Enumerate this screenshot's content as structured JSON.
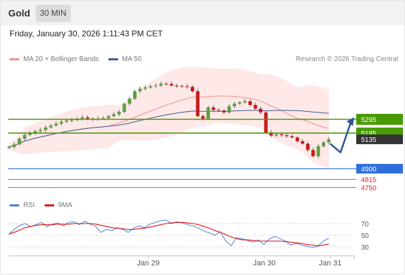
{
  "header": {
    "asset": "Gold",
    "timeframe": "30 MIN"
  },
  "datetime": "Friday, January 30, 2026 1:11:43 PM CET",
  "copyright": "Research © 2026 Trading Central",
  "colors": {
    "support_green": "#4a9a06",
    "pivot_blue": "#2f6fdb",
    "target_red": "#e31b1b",
    "candle_up": "#5aa040",
    "candle_down": "#c81919",
    "bollinger_fill": "#fde0e0",
    "ma20": "#f48c8c",
    "ma50": "#3a5a8c",
    "rsi": "#4a7cd9",
    "rsi_ma": "#dd1111",
    "price_tag": "#333333",
    "arrow": "#2d5a8f"
  },
  "chart_data": [
    {
      "type": "candlestick",
      "title": "Gold 30 MIN",
      "legend": [
        "MA 20 + Bollinger Bands",
        "MA 50"
      ],
      "x_labels": [
        "Jan 29",
        "Jan 30",
        "Jan 31"
      ],
      "levels": [
        {
          "value": 5295,
          "label": "5295",
          "style": "resistance"
        },
        {
          "value": 5185,
          "label": "5185",
          "style": "resistance"
        },
        {
          "value": 5135,
          "label": "5135",
          "style": "last-price"
        },
        {
          "value": 4900,
          "label": "4900",
          "style": "pivot"
        },
        {
          "value": 4815,
          "label": "4815",
          "style": "target"
        },
        {
          "value": 4750,
          "label": "4750",
          "style": "target"
        }
      ],
      "close_series": [
        5074,
        5095,
        5140,
        5170,
        5185,
        5200,
        5210,
        5230,
        5245,
        5260,
        5275,
        5285,
        5290,
        5300,
        5310,
        5300,
        5295,
        5300,
        5305,
        5320,
        5335,
        5355,
        5420,
        5460,
        5520,
        5540,
        5550,
        5560,
        5565,
        5580,
        5578,
        5565,
        5562,
        5560,
        5555,
        5520,
        5320,
        5300,
        5390,
        5370,
        5365,
        5350,
        5400,
        5420,
        5430,
        5440,
        5410,
        5380,
        5350,
        5190,
        5165,
        5175,
        5168,
        5160,
        5150,
        5120,
        5100,
        5050,
        5000,
        5080,
        5110,
        5135
      ],
      "projection": [
        5100,
        5030,
        5270
      ]
    },
    {
      "type": "line",
      "title": "RSI",
      "legend": [
        "RSI",
        "9MA"
      ],
      "y_ticks": [
        30,
        50,
        70
      ],
      "rsi": [
        52,
        60,
        67,
        70,
        65,
        68,
        72,
        65,
        69,
        71,
        66,
        72,
        73,
        68,
        74,
        69,
        65,
        55,
        60,
        58,
        63,
        60,
        55,
        62,
        66,
        63,
        69,
        72,
        75,
        76,
        70,
        73,
        71,
        68,
        66,
        62,
        57,
        54,
        50,
        56,
        40,
        32,
        46,
        44,
        41,
        38,
        42,
        34,
        43,
        48,
        44,
        40,
        33,
        36,
        33,
        31,
        29,
        31,
        40,
        45
      ],
      "ma9": [
        52,
        55,
        59,
        63,
        65,
        67,
        68,
        68,
        68,
        69,
        69,
        69,
        70,
        70,
        70,
        70,
        69,
        67,
        65,
        63,
        62,
        61,
        60,
        60,
        61,
        62,
        64,
        66,
        68,
        70,
        71,
        72,
        72,
        71,
        70,
        68,
        65,
        62,
        58,
        55,
        51,
        47,
        44,
        42,
        42,
        41,
        40,
        40,
        40,
        40,
        40,
        39,
        38,
        37,
        36,
        34,
        33,
        32,
        33,
        35
      ]
    }
  ]
}
